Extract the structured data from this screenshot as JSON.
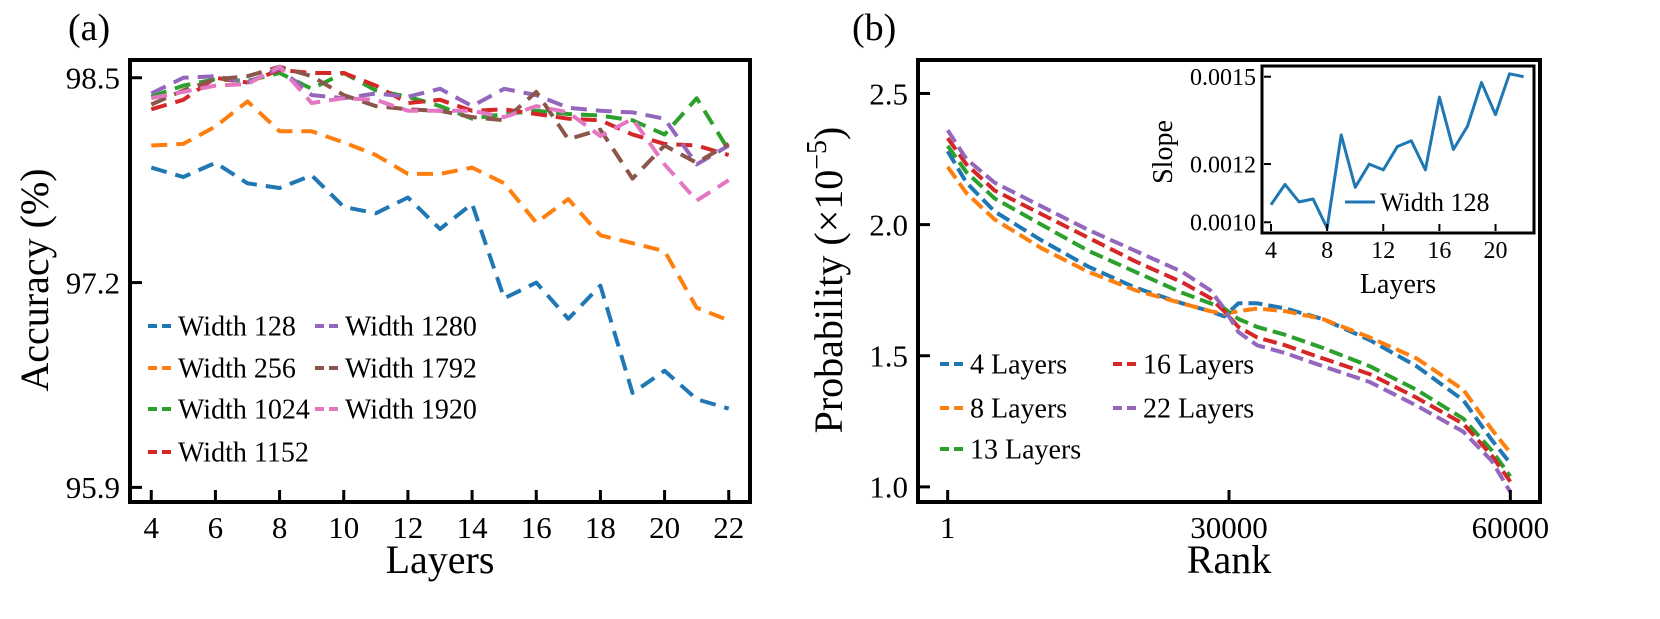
{
  "chart_data": [
    {
      "type": "line",
      "panel_label": "(a)",
      "xlabel": "Layers",
      "ylabel": "Accuracy (%)",
      "xlim": [
        3.4,
        22.6
      ],
      "ylim": [
        95.82,
        98.6
      ],
      "xticks": [
        4,
        6,
        8,
        10,
        12,
        14,
        16,
        18,
        20,
        22
      ],
      "yticks": [
        95.9,
        97.2,
        98.5
      ],
      "legend_position": "lower-left",
      "line_style": "dashed",
      "x": [
        4,
        5,
        6,
        7,
        8,
        9,
        10,
        11,
        12,
        13,
        14,
        15,
        16,
        17,
        18,
        19,
        20,
        21,
        22
      ],
      "series": [
        {
          "name": "Width 128",
          "color": "#1f77b4",
          "values": [
            97.93,
            97.87,
            97.96,
            97.83,
            97.8,
            97.88,
            97.68,
            97.64,
            97.74,
            97.54,
            97.7,
            97.1,
            97.2,
            96.97,
            97.18,
            96.5,
            96.64,
            96.46,
            96.4
          ]
        },
        {
          "name": "Width 256",
          "color": "#ff7f0e",
          "values": [
            98.07,
            98.08,
            98.19,
            98.35,
            98.16,
            98.16,
            98.09,
            98.01,
            97.89,
            97.89,
            97.93,
            97.83,
            97.58,
            97.73,
            97.5,
            97.45,
            97.4,
            97.04,
            96.96
          ]
        },
        {
          "name": "Width 1024",
          "color": "#2ca02c",
          "values": [
            98.38,
            98.45,
            98.49,
            98.48,
            98.53,
            98.43,
            98.53,
            98.42,
            98.38,
            98.32,
            98.24,
            98.27,
            98.29,
            98.27,
            98.26,
            98.23,
            98.14,
            98.37,
            98.04
          ]
        },
        {
          "name": "Width 1152",
          "color": "#d62728",
          "values": [
            98.3,
            98.36,
            98.5,
            98.47,
            98.55,
            98.53,
            98.53,
            98.45,
            98.34,
            98.36,
            98.29,
            98.3,
            98.27,
            98.24,
            98.23,
            98.14,
            98.08,
            98.07,
            98.01
          ]
        },
        {
          "name": "Width 1280",
          "color": "#9467bd",
          "values": [
            98.4,
            98.5,
            98.51,
            98.47,
            98.56,
            98.39,
            98.37,
            98.4,
            98.38,
            98.43,
            98.32,
            98.43,
            98.39,
            98.31,
            98.29,
            98.28,
            98.24,
            97.95,
            98.07
          ]
        },
        {
          "name": "Width 1792",
          "color": "#8c564b",
          "values": [
            98.33,
            98.42,
            98.49,
            98.51,
            98.57,
            98.51,
            98.39,
            98.32,
            98.3,
            98.29,
            98.25,
            98.23,
            98.41,
            98.11,
            98.17,
            97.86,
            98.07,
            97.96,
            98.08
          ]
        },
        {
          "name": "Width 1920",
          "color": "#e377c2",
          "values": [
            98.37,
            98.41,
            98.45,
            98.46,
            98.57,
            98.34,
            98.37,
            98.36,
            98.29,
            98.29,
            98.29,
            98.25,
            98.32,
            98.28,
            98.13,
            98.24,
            97.95,
            97.72,
            97.85
          ]
        }
      ]
    },
    {
      "type": "line",
      "panel_label": "(b)",
      "xlabel": "Rank",
      "ylabel_main": "Probability (×10",
      "ylabel_exp": "−5",
      "ylabel_close": ")",
      "xlim": [
        -2950,
        62950
      ],
      "ylim": [
        0.95,
        2.62
      ],
      "xticks": [
        1,
        30000,
        60000
      ],
      "xtick_labels": [
        "1",
        "30000",
        "60000"
      ],
      "yticks": [
        1.0,
        1.5,
        2.0,
        2.5
      ],
      "ytick_labels": [
        "1.0",
        "1.5",
        "2.0",
        "2.5"
      ],
      "legend_position": "lower-left",
      "line_style": "dashed",
      "x": [
        1,
        2000,
        5000,
        10000,
        15000,
        20000,
        25000,
        28000,
        29500,
        31000,
        33000,
        36000,
        40000,
        45000,
        50000,
        55000,
        58000,
        60000
      ],
      "series": [
        {
          "name": "4 Layers",
          "color": "#1f77b4",
          "values": [
            2.28,
            2.16,
            2.05,
            1.94,
            1.84,
            1.76,
            1.7,
            1.67,
            1.65,
            1.7,
            1.7,
            1.68,
            1.64,
            1.56,
            1.46,
            1.33,
            1.18,
            1.09
          ]
        },
        {
          "name": "8 Layers",
          "color": "#ff7f0e",
          "values": [
            2.22,
            2.12,
            2.02,
            1.91,
            1.82,
            1.75,
            1.7,
            1.67,
            1.66,
            1.67,
            1.68,
            1.67,
            1.64,
            1.57,
            1.49,
            1.37,
            1.22,
            1.13
          ]
        },
        {
          "name": "13 Layers",
          "color": "#2ca02c",
          "values": [
            2.3,
            2.2,
            2.1,
            2.0,
            1.9,
            1.82,
            1.74,
            1.7,
            1.68,
            1.64,
            1.61,
            1.58,
            1.53,
            1.46,
            1.37,
            1.26,
            1.14,
            1.04
          ]
        },
        {
          "name": "16 Layers",
          "color": "#d62728",
          "values": [
            2.33,
            2.23,
            2.13,
            2.04,
            1.95,
            1.86,
            1.78,
            1.72,
            1.67,
            1.61,
            1.57,
            1.54,
            1.49,
            1.43,
            1.34,
            1.24,
            1.12,
            1.02
          ]
        },
        {
          "name": "22 Layers",
          "color": "#9467bd",
          "values": [
            2.36,
            2.25,
            2.16,
            2.07,
            1.98,
            1.9,
            1.82,
            1.75,
            1.68,
            1.59,
            1.54,
            1.51,
            1.46,
            1.4,
            1.31,
            1.21,
            1.1,
            0.98
          ]
        }
      ],
      "inset": {
        "type": "line",
        "xlabel": "Layers",
        "ylabel": "Slope",
        "xlim": [
          3.5,
          22.6
        ],
        "ylim": [
          0.00097,
          0.00153
        ],
        "xticks": [
          4,
          8,
          12,
          16,
          20
        ],
        "yticks": [
          0.001,
          0.0012,
          0.0015
        ],
        "ytick_labels": [
          "0.0010",
          "0.0012",
          "0.0015"
        ],
        "legend_position": "lower-right",
        "x": [
          4,
          5,
          6,
          7,
          8,
          9,
          10,
          11,
          12,
          13,
          14,
          15,
          16,
          17,
          18,
          19,
          20,
          21,
          22
        ],
        "series": [
          {
            "name": "Width 128",
            "color": "#1f77b4",
            "values": [
              0.00106,
              0.00113,
              0.00107,
              0.00108,
              0.00098,
              0.0013,
              0.00112,
              0.0012,
              0.00118,
              0.00126,
              0.00128,
              0.00118,
              0.00143,
              0.00125,
              0.00133,
              0.00148,
              0.00137,
              0.00151,
              0.0015
            ]
          }
        ]
      }
    }
  ]
}
